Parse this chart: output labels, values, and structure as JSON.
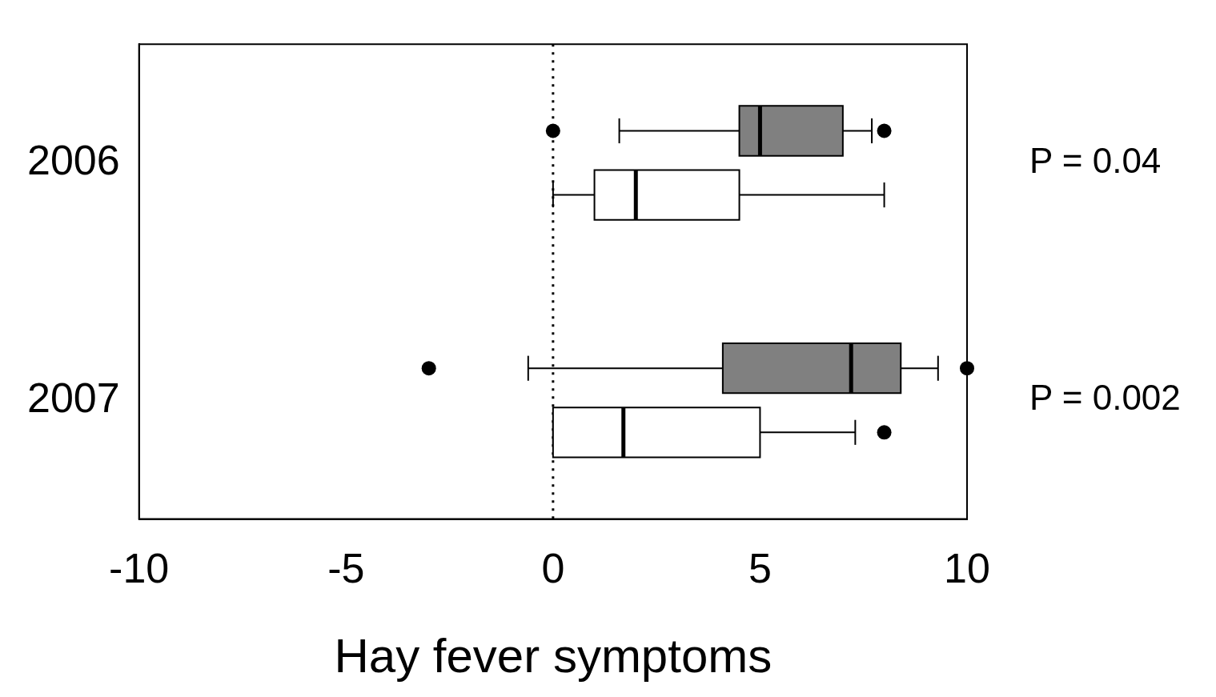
{
  "chart_data": {
    "type": "box",
    "orientation": "horizontal",
    "xlabel": "Hay fever symptoms",
    "categories": [
      "2006",
      "2007"
    ],
    "series": [
      {
        "color": "#808080",
        "boxes": [
          {
            "low": 1.6,
            "q1": 4.5,
            "median": 5,
            "q3": 7,
            "high": 7.7,
            "outliers": [
              0,
              8
            ]
          },
          {
            "low": -0.6,
            "q1": 4.1,
            "median": 7.2,
            "q3": 8.4,
            "high": 9.3,
            "outliers": [
              -3,
              10
            ]
          }
        ]
      },
      {
        "color": "#ffffff",
        "boxes": [
          {
            "low": 0,
            "q1": 1,
            "median": 2,
            "q3": 4.5,
            "high": 8
          },
          {
            "low": 0,
            "q1": 0,
            "median": 1.7,
            "q3": 5,
            "high": 7.3,
            "outliers": [
              8
            ]
          }
        ]
      }
    ],
    "xlim": [
      -10,
      10
    ],
    "xticks": [
      -10,
      -5,
      0,
      5,
      10
    ],
    "ref_lines": [
      {
        "axis": "x",
        "value": 0,
        "line_style": "dotted"
      }
    ],
    "annotations": [
      "P = 0.04",
      "P = 0.002"
    ]
  }
}
